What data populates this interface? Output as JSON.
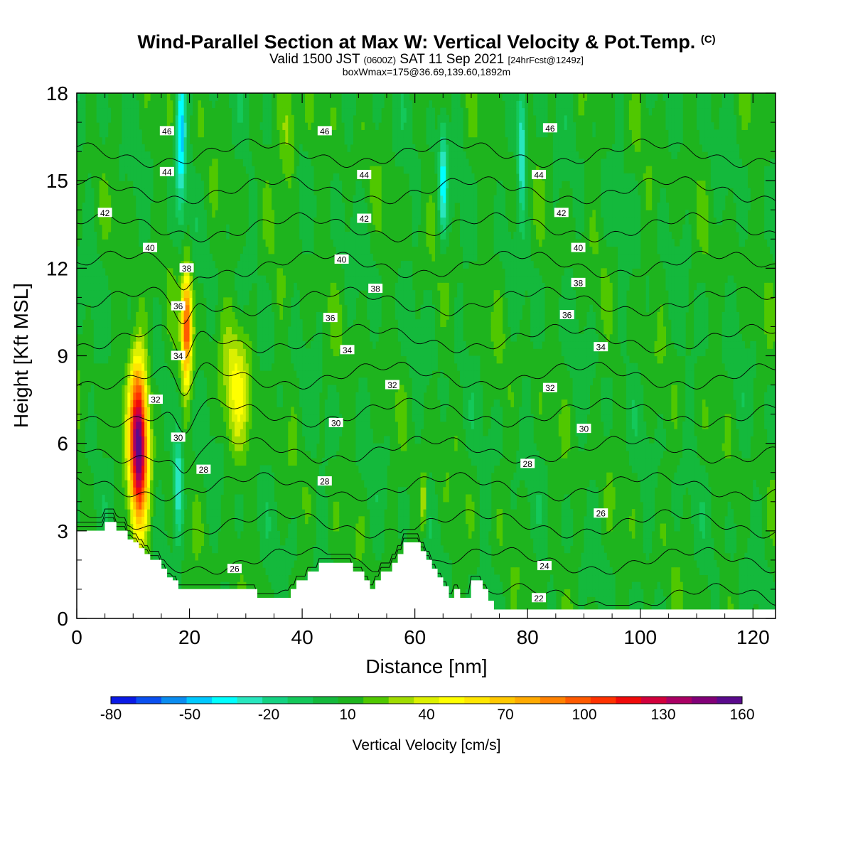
{
  "titles": {
    "main": "Wind-Parallel Section at Max W: Vertical Velocity & Pot.Temp.",
    "main_copyright": "(C)",
    "valid_prefix": "Valid 1500 JST",
    "valid_utc": "(0600Z)",
    "valid_date": "SAT 11 Sep 2021",
    "forecast": "[24hrFcst@1249z]",
    "boxwmax": "boxWmax=175@36.69,139.60,1892m"
  },
  "colorbar": {
    "label": "Vertical Velocity [cm/s]",
    "tick_labels": [
      "-80",
      "-50",
      "-20",
      "10",
      "40",
      "70",
      "100",
      "130",
      "160"
    ],
    "colors": [
      "#0a1ae6",
      "#0a50f0",
      "#0a8cf0",
      "#00c8ff",
      "#00ffff",
      "#28e6be",
      "#14d282",
      "#14c85a",
      "#14b93c",
      "#1eb41e",
      "#50c800",
      "#a0dc00",
      "#dcf000",
      "#ffff00",
      "#ffe600",
      "#ffc800",
      "#ffaa00",
      "#ff8200",
      "#ff5a00",
      "#ff3200",
      "#f00a0a",
      "#d2003c",
      "#aa0064",
      "#820078",
      "#5a0a8c"
    ]
  },
  "chart_data": {
    "type": "heatmap",
    "title": "Wind-Parallel Section at Max W: Vertical Velocity & Pot.Temp.",
    "xlabel": "Distance [nm]",
    "ylabel": "Height [Kft MSL]",
    "xlim": [
      0,
      124
    ],
    "ylim": [
      0,
      18
    ],
    "x_ticks": [
      "0",
      "20",
      "40",
      "60",
      "80",
      "100",
      "120"
    ],
    "y_ticks": [
      "0",
      "3",
      "6",
      "9",
      "12",
      "15",
      "18"
    ],
    "color_scale": {
      "label": "Vertical Velocity [cm/s]",
      "min": -80,
      "max": 160,
      "step": 10
    },
    "updraft_cores": [
      {
        "x": 11,
        "y": 6.0,
        "w": 160,
        "x_halfwidth": 1.6,
        "y_halfwidth": 2.8
      },
      {
        "x": 19.5,
        "y": 10.0,
        "w": 110,
        "x_halfwidth": 0.9,
        "y_halfwidth": 1.9
      },
      {
        "x": 28.5,
        "y": 8.0,
        "w": 45,
        "x_halfwidth": 2.5,
        "y_halfwidth": 2.2
      },
      {
        "x": 61.5,
        "y": 4.0,
        "w": 45,
        "x_halfwidth": 0.5,
        "y_halfwidth": 1.0
      },
      {
        "x": 37.5,
        "y": 16.5,
        "w": 35,
        "x_halfwidth": 1.5,
        "y_halfwidth": 2.0
      }
    ],
    "downdraft_cores": [
      {
        "x": 18.5,
        "y": 16.5,
        "w": -45,
        "x_halfwidth": 0.9,
        "y_halfwidth": 2.5
      },
      {
        "x": 18.0,
        "y": 4.5,
        "w": -40,
        "x_halfwidth": 0.8,
        "y_halfwidth": 1.8
      },
      {
        "x": 79.0,
        "y": 16.0,
        "w": -40,
        "x_halfwidth": 0.7,
        "y_halfwidth": 2.0
      },
      {
        "x": 65.0,
        "y": 15.0,
        "w": -35,
        "x_halfwidth": 0.7,
        "y_halfwidth": 2.0
      }
    ],
    "theta_contours": {
      "levels": [
        22,
        24,
        26,
        28,
        30,
        32,
        34,
        36,
        38,
        40,
        42,
        44,
        46
      ],
      "label_annotations": [
        {
          "text": "46",
          "x": 16,
          "y": 16.7
        },
        {
          "text": "46",
          "x": 44,
          "y": 16.7
        },
        {
          "text": "46",
          "x": 84,
          "y": 16.8
        },
        {
          "text": "44",
          "x": 16,
          "y": 15.3
        },
        {
          "text": "44",
          "x": 51,
          "y": 15.2
        },
        {
          "text": "44",
          "x": 82,
          "y": 15.2
        },
        {
          "text": "42",
          "x": 5,
          "y": 13.9
        },
        {
          "text": "42",
          "x": 51,
          "y": 13.7
        },
        {
          "text": "42",
          "x": 86,
          "y": 13.9
        },
        {
          "text": "40",
          "x": 13,
          "y": 12.7
        },
        {
          "text": "40",
          "x": 47,
          "y": 12.3
        },
        {
          "text": "40",
          "x": 89,
          "y": 12.7
        },
        {
          "text": "38",
          "x": 19.5,
          "y": 12.0
        },
        {
          "text": "38",
          "x": 53,
          "y": 11.3
        },
        {
          "text": "38",
          "x": 89,
          "y": 11.5
        },
        {
          "text": "36",
          "x": 18,
          "y": 10.7
        },
        {
          "text": "36",
          "x": 45,
          "y": 10.3
        },
        {
          "text": "36",
          "x": 87,
          "y": 10.4
        },
        {
          "text": "34",
          "x": 18,
          "y": 9.0
        },
        {
          "text": "34",
          "x": 48,
          "y": 9.2
        },
        {
          "text": "34",
          "x": 93,
          "y": 9.3
        },
        {
          "text": "32",
          "x": 14,
          "y": 7.5
        },
        {
          "text": "32",
          "x": 56,
          "y": 8.0
        },
        {
          "text": "32",
          "x": 84,
          "y": 7.9
        },
        {
          "text": "30",
          "x": 18,
          "y": 6.2
        },
        {
          "text": "30",
          "x": 46,
          "y": 6.7
        },
        {
          "text": "30",
          "x": 90,
          "y": 6.5
        },
        {
          "text": "28",
          "x": 22.5,
          "y": 5.1
        },
        {
          "text": "28",
          "x": 44,
          "y": 4.7
        },
        {
          "text": "28",
          "x": 80,
          "y": 5.3
        },
        {
          "text": "26",
          "x": 28,
          "y": 1.7
        },
        {
          "text": "26",
          "x": 93,
          "y": 3.6
        },
        {
          "text": "24",
          "x": 83,
          "y": 1.8
        },
        {
          "text": "22",
          "x": 82,
          "y": 0.7
        }
      ]
    },
    "terrain_kft": [
      [
        0,
        3.0
      ],
      [
        5,
        3.0
      ],
      [
        5,
        3.3
      ],
      [
        7,
        3.3
      ],
      [
        7,
        3.0
      ],
      [
        9,
        3.0
      ],
      [
        9,
        2.7
      ],
      [
        10,
        2.7
      ],
      [
        10,
        2.6
      ],
      [
        11,
        2.6
      ],
      [
        11,
        2.4
      ],
      [
        12,
        2.4
      ],
      [
        12,
        2.2
      ],
      [
        13,
        2.2
      ],
      [
        13,
        2.0
      ],
      [
        15,
        2.0
      ],
      [
        15,
        1.7
      ],
      [
        16,
        1.7
      ],
      [
        16,
        1.4
      ],
      [
        17,
        1.4
      ],
      [
        17,
        1.3
      ],
      [
        18,
        1.3
      ],
      [
        18,
        1.0
      ],
      [
        21,
        1.0
      ],
      [
        21,
        1.0
      ],
      [
        26,
        1.0
      ],
      [
        32,
        1.0
      ],
      [
        32,
        0.7
      ],
      [
        38,
        0.7
      ],
      [
        38,
        1.0
      ],
      [
        39,
        1.0
      ],
      [
        39,
        1.3
      ],
      [
        41,
        1.3
      ],
      [
        41,
        1.6
      ],
      [
        43,
        1.6
      ],
      [
        43,
        1.9
      ],
      [
        49,
        1.9
      ],
      [
        49,
        1.6
      ],
      [
        51,
        1.6
      ],
      [
        51,
        1.3
      ],
      [
        52,
        1.3
      ],
      [
        52,
        1.0
      ],
      [
        53,
        1.0
      ],
      [
        53,
        1.3
      ],
      [
        54,
        1.3
      ],
      [
        54,
        1.6
      ],
      [
        56,
        1.6
      ],
      [
        56,
        1.9
      ],
      [
        57,
        1.9
      ],
      [
        57,
        2.2
      ],
      [
        58,
        2.2
      ],
      [
        58,
        2.6
      ],
      [
        61,
        2.6
      ],
      [
        61,
        2.3
      ],
      [
        62,
        2.3
      ],
      [
        62,
        2.0
      ],
      [
        63,
        2.0
      ],
      [
        63,
        1.7
      ],
      [
        64,
        1.7
      ],
      [
        64,
        1.4
      ],
      [
        65,
        1.4
      ],
      [
        65,
        1.1
      ],
      [
        66,
        1.1
      ],
      [
        66,
        0.7
      ],
      [
        67,
        0.7
      ],
      [
        67,
        1.0
      ],
      [
        68,
        1.0
      ],
      [
        68,
        0.7
      ],
      [
        70,
        0.7
      ],
      [
        70,
        1.3
      ],
      [
        72,
        1.3
      ],
      [
        72,
        1.0
      ],
      [
        73,
        1.0
      ],
      [
        73,
        0.6
      ],
      [
        74,
        0.6
      ],
      [
        74,
        0.3
      ],
      [
        124,
        0.3
      ]
    ]
  }
}
